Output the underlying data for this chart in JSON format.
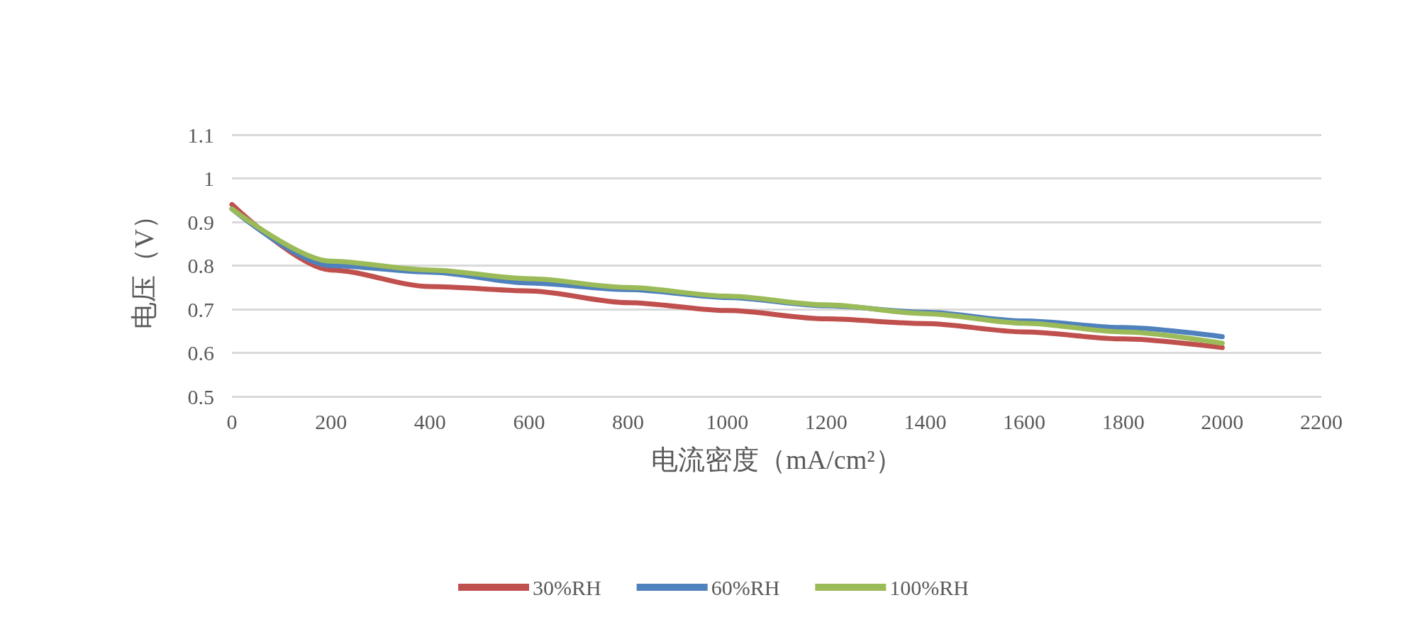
{
  "chart_data": {
    "type": "line",
    "xlabel": "电流密度（mA/cm²）",
    "ylabel": "电压（V）",
    "x": [
      0,
      200,
      400,
      600,
      800,
      1000,
      1200,
      1400,
      1600,
      1800,
      2000
    ],
    "series": [
      {
        "name": "30%RH",
        "color": "#c0504d",
        "values": [
          0.94,
          0.79,
          0.752,
          0.742,
          0.715,
          0.697,
          0.678,
          0.667,
          0.648,
          0.632,
          0.612
        ]
      },
      {
        "name": "60%RH",
        "color": "#4f81bd",
        "values": [
          0.93,
          0.8,
          0.785,
          0.76,
          0.745,
          0.727,
          0.708,
          0.693,
          0.673,
          0.658,
          0.637
        ]
      },
      {
        "name": "100%RH",
        "color": "#9bbb59",
        "values": [
          0.93,
          0.81,
          0.79,
          0.77,
          0.75,
          0.73,
          0.71,
          0.69,
          0.668,
          0.648,
          0.622
        ]
      }
    ],
    "xlim": [
      0,
      2200
    ],
    "xticks": [
      0,
      200,
      400,
      600,
      800,
      1000,
      1200,
      1400,
      1600,
      1800,
      2000,
      2200
    ],
    "ylim": [
      0.5,
      1.1
    ],
    "yticks": [
      0.5,
      0.6,
      0.7,
      0.8,
      0.9,
      1,
      1.1
    ],
    "grid": "y",
    "legend": "bottom",
    "marker": "none",
    "line_style": "solid"
  }
}
